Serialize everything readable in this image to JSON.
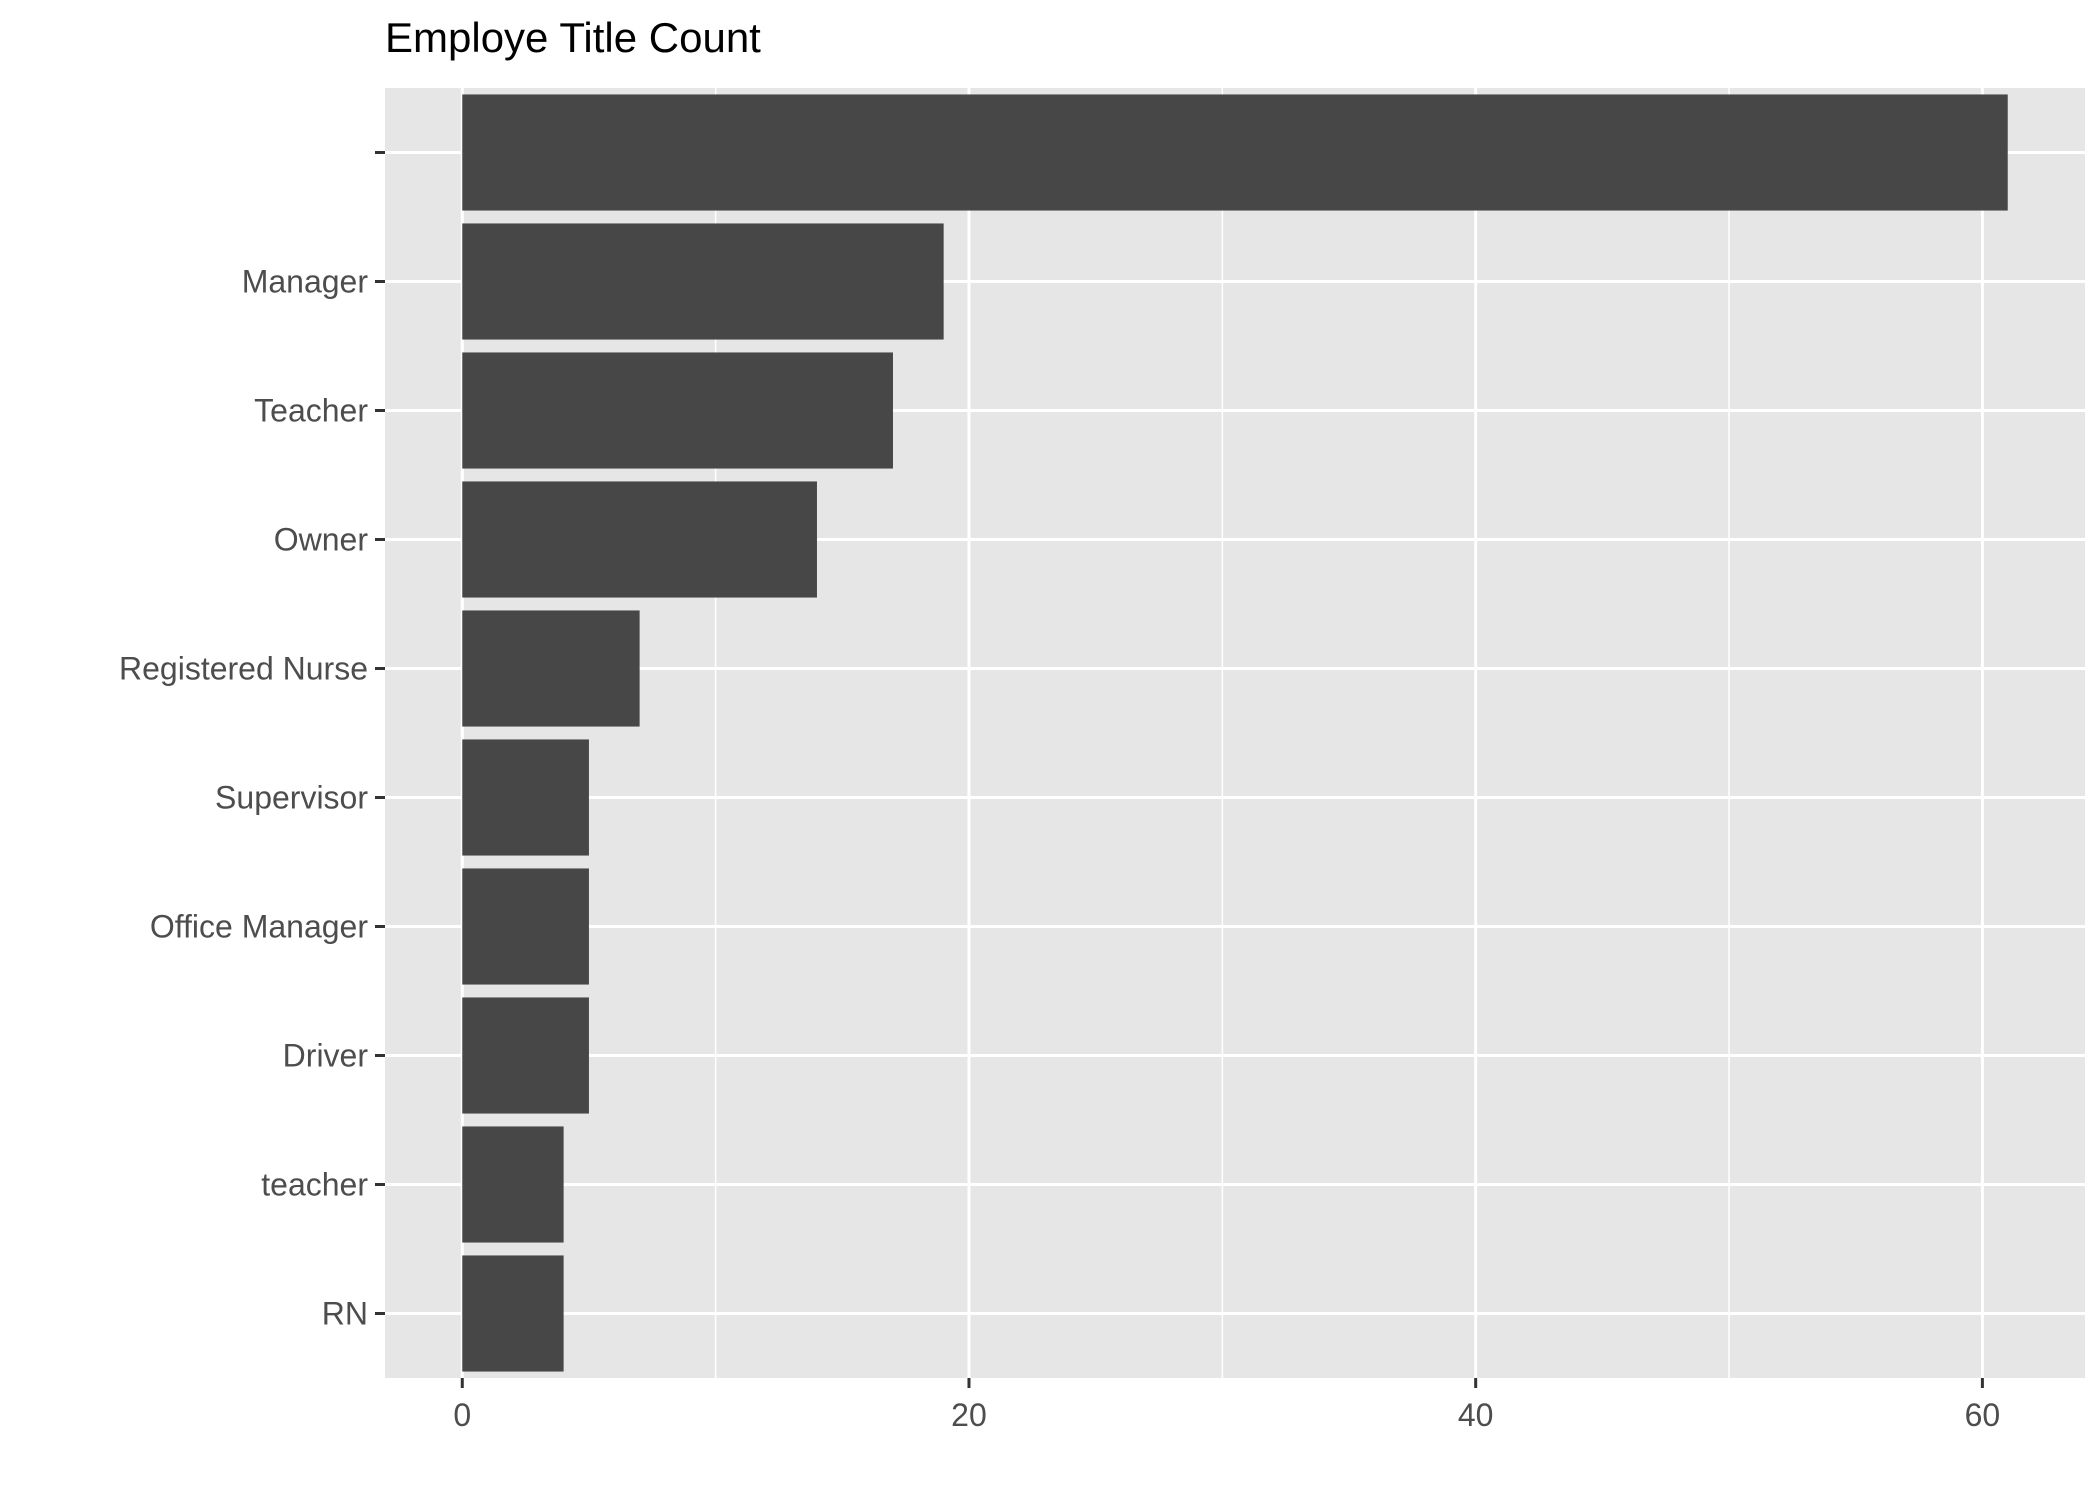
{
  "chart_data": {
    "type": "bar",
    "orientation": "horizontal",
    "title": "Employe Title Count",
    "xlabel": "",
    "ylabel": "",
    "categories": [
      "",
      "Manager",
      "Teacher",
      "Owner",
      "Registered Nurse",
      "Supervisor",
      "Office Manager",
      "Driver",
      "teacher",
      "RN"
    ],
    "values": [
      61,
      19,
      17,
      14,
      7,
      5,
      5,
      5,
      4,
      4
    ],
    "xlim": [
      -3.05,
      64.05
    ],
    "xticks": [
      0,
      20,
      40,
      60
    ],
    "grid": true,
    "colors": {
      "bar": "#474747",
      "panel": "#e6e6e6",
      "grid": "#ffffff",
      "text": "#4d4d4d",
      "tick": "#333333"
    }
  }
}
